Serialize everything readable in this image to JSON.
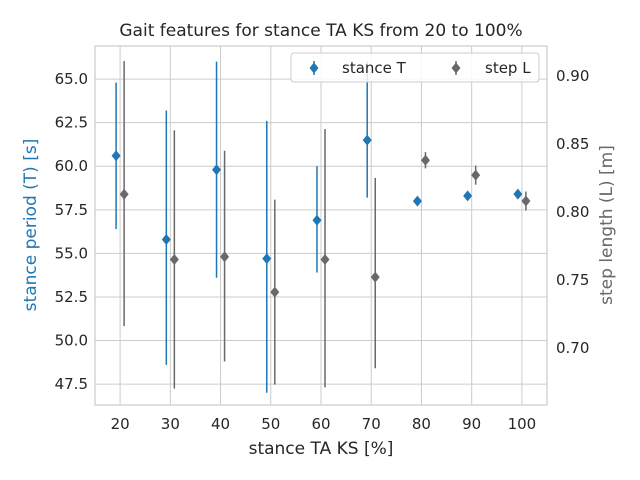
{
  "chart_data": {
    "type": "scatter",
    "title": "Gait features for stance TA KS from 20 to 100%",
    "xlabel": "stance TA KS [%]",
    "ylabel_left": "stance period (T) [s]",
    "ylabel_right": "step length (L) [m]",
    "x_ticks": [
      20,
      30,
      40,
      50,
      60,
      70,
      80,
      90,
      100
    ],
    "y_left_ticks": [
      "47.5",
      "50.0",
      "52.5",
      "55.0",
      "57.5",
      "60.0",
      "62.5",
      "65.0"
    ],
    "y_right_ticks": [
      "0.70",
      "0.75",
      "0.80",
      "0.85",
      "0.90"
    ],
    "xlim": [
      15,
      105
    ],
    "ylim_left": [
      46.3,
      66.9
    ],
    "ylim_right": [
      0.658,
      0.922
    ],
    "grid": true,
    "legend_position": "top-right",
    "colors": {
      "stance": "#1f77b4",
      "step": "#696969"
    },
    "series": [
      {
        "name": "stance T",
        "axis": "left",
        "x": [
          19.2,
          29.2,
          39.2,
          49.2,
          59.2,
          69.2,
          79.2,
          89.2,
          99.2
        ],
        "y": [
          60.6,
          55.8,
          59.8,
          54.7,
          56.9,
          61.5,
          58.0,
          58.3,
          58.4
        ],
        "err_low": [
          56.4,
          48.6,
          53.6,
          47.0,
          53.9,
          58.2,
          58.0,
          58.3,
          58.4
        ],
        "err_high": [
          64.8,
          63.2,
          66.0,
          62.6,
          60.0,
          66.0,
          58.0,
          58.3,
          58.4
        ]
      },
      {
        "name": "step L",
        "axis": "right",
        "x": [
          20.8,
          30.8,
          40.8,
          50.8,
          60.8,
          70.8,
          80.8,
          90.8,
          100.8
        ],
        "y": [
          0.813,
          0.765,
          0.767,
          0.741,
          0.765,
          0.752,
          0.838,
          0.827,
          0.808
        ],
        "err_low": [
          0.716,
          0.67,
          0.69,
          0.673,
          0.671,
          0.685,
          0.832,
          0.82,
          0.801
        ],
        "err_high": [
          0.911,
          0.86,
          0.845,
          0.809,
          0.861,
          0.825,
          0.844,
          0.834,
          0.815
        ]
      }
    ]
  }
}
